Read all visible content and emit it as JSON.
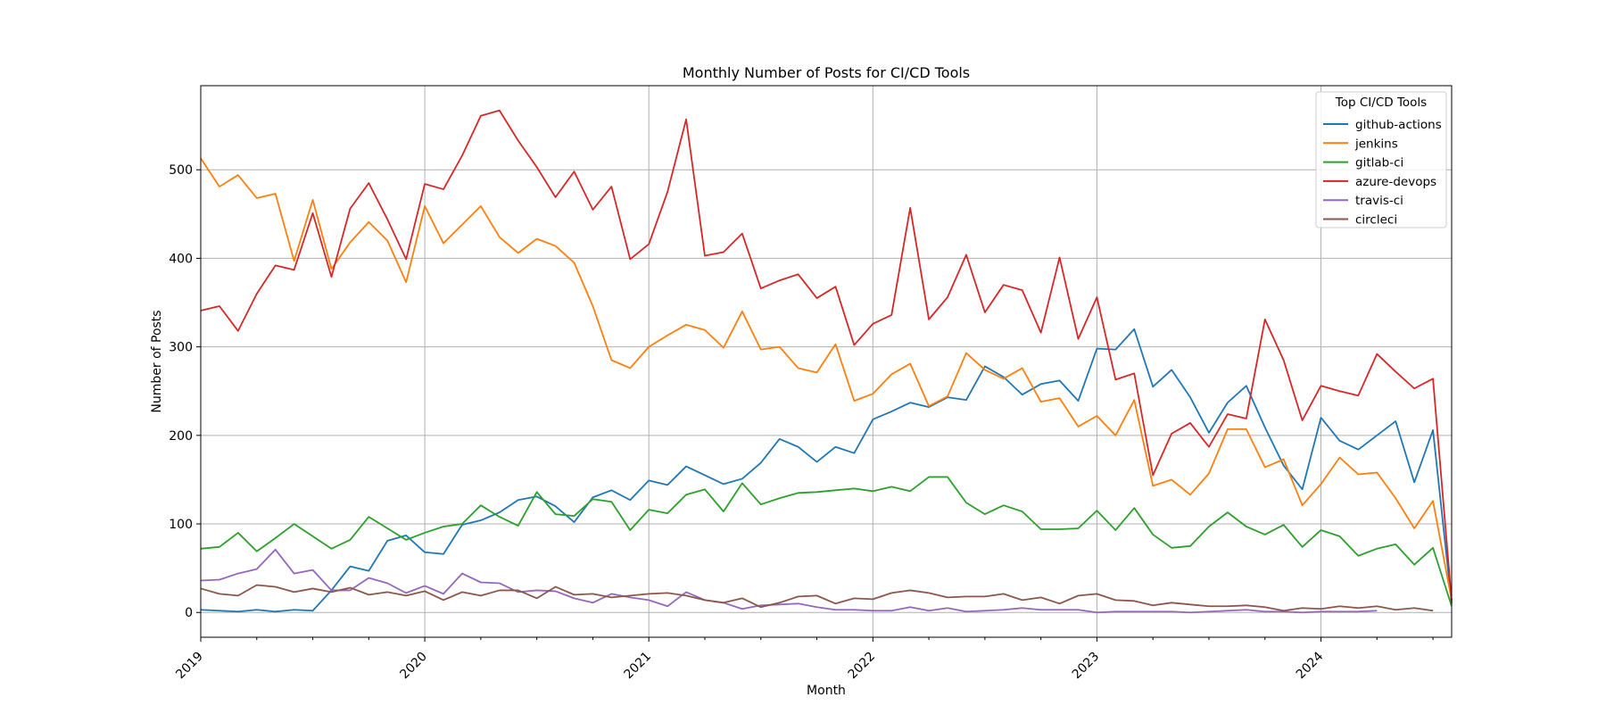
{
  "chart_data": {
    "type": "line",
    "title": "Monthly Number of Posts for CI/CD Tools",
    "xlabel": "Month",
    "ylabel": "Number of Posts",
    "legend_title": "Top CI/CD Tools",
    "legend_position": "top-right",
    "grid": true,
    "x_start": "2019-01",
    "x_end": "2024-08",
    "xlim": [
      "2019-01",
      "2024-08"
    ],
    "ylim": [
      -28,
      595
    ],
    "y_ticks": [
      0,
      100,
      200,
      300,
      400,
      500
    ],
    "y_tick_labels": [
      "0",
      "100",
      "200",
      "300",
      "400",
      "500"
    ],
    "x_ticks": [
      "2019-01",
      "2020-01",
      "2021-01",
      "2022-01",
      "2023-01",
      "2024-01"
    ],
    "x_tick_labels": [
      "2019",
      "2020",
      "2021",
      "2022",
      "2023",
      "2024"
    ],
    "series": [
      {
        "name": "github-actions",
        "color": "#1f77b4",
        "start": "2019-01",
        "values": [
          3,
          2,
          1,
          3,
          1,
          3,
          2,
          25,
          52,
          47,
          81,
          87,
          68,
          66,
          99,
          104,
          113,
          127,
          131,
          120,
          102,
          130,
          138,
          127,
          149,
          144,
          165,
          155,
          145,
          151,
          169,
          196,
          187,
          170,
          187,
          180,
          218,
          227,
          237,
          232,
          243,
          240,
          278,
          266,
          246,
          258,
          262,
          239,
          298,
          297,
          320,
          255,
          274,
          243,
          203,
          237,
          256,
          209,
          166,
          139,
          220,
          194,
          184,
          200,
          216,
          147,
          206,
          10
        ]
      },
      {
        "name": "jenkins",
        "color": "#ff7f0e",
        "start": "2019-01",
        "values": [
          513,
          481,
          494,
          468,
          473,
          397,
          466,
          388,
          418,
          441,
          420,
          373,
          459,
          417,
          438,
          459,
          424,
          406,
          422,
          414,
          395,
          346,
          285,
          276,
          300,
          313,
          325,
          319,
          299,
          340,
          297,
          300,
          276,
          271,
          303,
          239,
          247,
          269,
          281,
          233,
          244,
          293,
          274,
          264,
          276,
          238,
          242,
          210,
          222,
          200,
          240,
          143,
          150,
          133,
          157,
          207,
          207,
          164,
          173,
          121,
          145,
          175,
          156,
          158,
          129,
          95,
          126,
          14
        ]
      },
      {
        "name": "gitlab-ci",
        "color": "#2ca02c",
        "start": "2019-01",
        "values": [
          72,
          74,
          90,
          69,
          84,
          100,
          86,
          72,
          82,
          108,
          95,
          82,
          90,
          97,
          100,
          121,
          108,
          98,
          136,
          111,
          109,
          128,
          125,
          93,
          116,
          112,
          133,
          139,
          114,
          146,
          122,
          129,
          135,
          136,
          138,
          140,
          137,
          142,
          137,
          153,
          153,
          124,
          111,
          121,
          114,
          94,
          94,
          95,
          115,
          93,
          118,
          88,
          73,
          75,
          97,
          113,
          97,
          88,
          99,
          74,
          93,
          86,
          64,
          72,
          77,
          54,
          73,
          7
        ]
      },
      {
        "name": "azure-devops",
        "color": "#d62728",
        "start": "2019-01",
        "values": [
          341,
          346,
          318,
          360,
          392,
          387,
          451,
          379,
          456,
          485,
          444,
          399,
          484,
          478,
          516,
          561,
          567,
          533,
          503,
          469,
          498,
          455,
          481,
          399,
          416,
          475,
          557,
          403,
          407,
          428,
          366,
          375,
          382,
          355,
          368,
          302,
          326,
          336,
          457,
          331,
          356,
          404,
          339,
          370,
          364,
          316,
          401,
          309,
          356,
          263,
          270,
          155,
          202,
          214,
          187,
          224,
          219,
          331,
          285,
          217,
          256,
          250,
          245,
          292,
          272,
          253,
          264,
          13
        ]
      },
      {
        "name": "travis-ci",
        "color": "#9467bd",
        "start": "2019-01",
        "values": [
          36,
          37,
          44,
          49,
          71,
          44,
          48,
          25,
          25,
          39,
          33,
          22,
          30,
          21,
          44,
          34,
          33,
          23,
          25,
          24,
          16,
          11,
          21,
          17,
          14,
          7,
          23,
          14,
          11,
          4,
          8,
          9,
          10,
          6,
          3,
          3,
          2,
          2,
          6,
          2,
          5,
          1,
          2,
          3,
          5,
          3,
          3,
          3,
          0,
          1,
          1,
          1,
          1,
          0,
          1,
          2,
          3,
          1,
          1,
          0,
          1,
          1,
          1,
          2,
          null,
          null,
          null,
          null
        ]
      },
      {
        "name": "circleci",
        "color": "#8c564b",
        "start": "2019-01",
        "values": [
          27,
          21,
          19,
          31,
          29,
          23,
          27,
          23,
          28,
          20,
          23,
          19,
          24,
          14,
          23,
          19,
          25,
          25,
          16,
          29,
          20,
          21,
          17,
          19,
          21,
          22,
          19,
          14,
          11,
          16,
          6,
          11,
          18,
          19,
          10,
          16,
          15,
          22,
          25,
          22,
          17,
          18,
          18,
          21,
          14,
          17,
          10,
          19,
          21,
          14,
          13,
          8,
          11,
          9,
          7,
          7,
          8,
          6,
          2,
          5,
          4,
          7,
          5,
          7,
          3,
          5,
          2,
          null
        ]
      }
    ]
  }
}
